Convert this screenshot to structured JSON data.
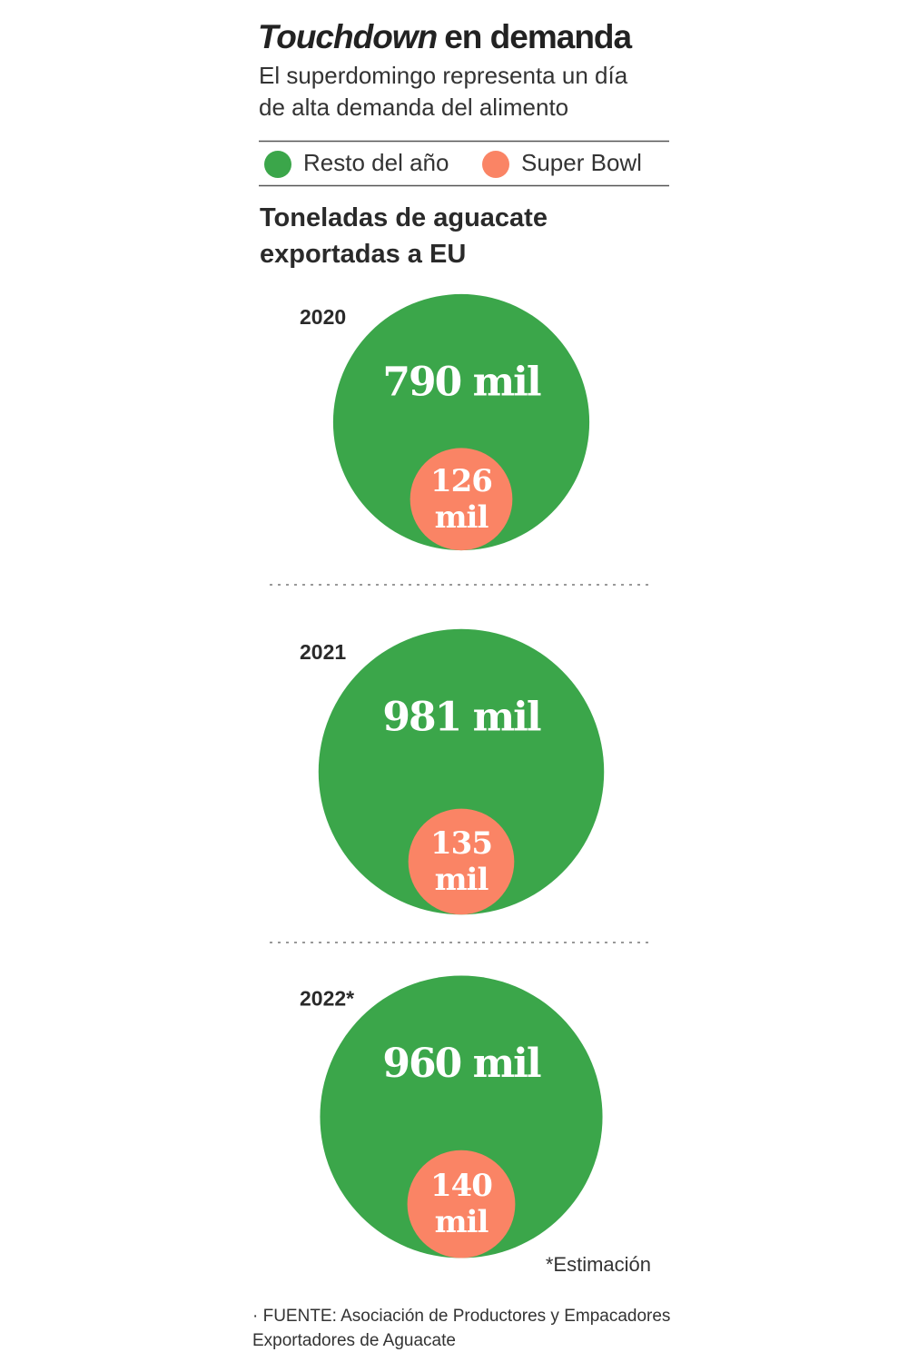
{
  "chart_data": {
    "type": "nested-bubble",
    "title": {
      "italic": "Touchdown",
      "rest": "en demanda"
    },
    "subtitle": "El superdomingo representa un día de alta demanda del alimento",
    "axis_label": "Toneladas de aguacate exportadas a EU",
    "categories": [
      "2020",
      "2021",
      "2022*"
    ],
    "series": [
      {
        "name": "Resto del año",
        "color": "#3ba64a",
        "values": [
          790,
          981,
          960
        ],
        "value_labels": [
          "790 mil",
          "981 mil",
          "960 mil"
        ]
      },
      {
        "name": "Super Bowl",
        "color": "#fa8465",
        "values": [
          126,
          135,
          140
        ],
        "value_labels": [
          "126 mil",
          "135 mil",
          "140 mil"
        ]
      }
    ],
    "note": "*Estimación",
    "source": "· FUENTE: Asociación de Productores y Empacadores Exportadores de Aguacate"
  }
}
